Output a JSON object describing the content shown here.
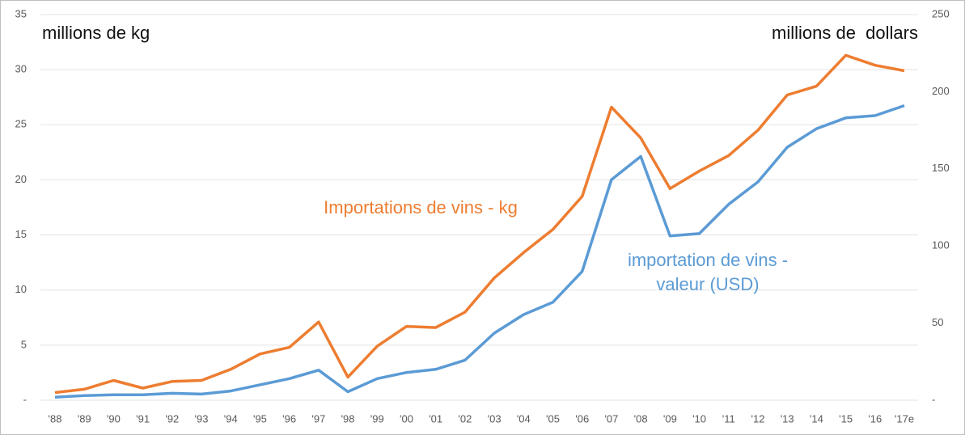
{
  "chart_data": {
    "type": "line",
    "annotations": [
      "millions de kg",
      "millions de  dollars"
    ],
    "categories": [
      "'88",
      "'89",
      "'90",
      "'91",
      "'92",
      "'93",
      "'94",
      "'95",
      "'96",
      "'97",
      "'98",
      "'99",
      "'00",
      "'01",
      "'02",
      "'03",
      "'04",
      "'05",
      "'06",
      "'07",
      "'08",
      "'09",
      "'10",
      "'11",
      "'12",
      "'13",
      "'14",
      "'15",
      "'16",
      "'17e"
    ],
    "series": [
      {
        "name": "Importations de vins - kg",
        "color": "#ED7D31",
        "values": [
          0.7,
          1.0,
          1.8,
          1.1,
          1.7,
          1.8,
          2.8,
          4.2,
          4.8,
          7.1,
          2.1,
          4.9,
          6.7,
          6.6,
          8.0,
          11.1,
          13.4,
          15.5,
          18.5,
          26.6,
          23.8,
          19.2,
          20.8,
          22.2,
          24.5,
          27.7,
          28.5,
          31.3,
          30.4,
          29.9
        ]
      },
      {
        "name": "importation de vins - valeur (USD)",
        "color": "#5B9BD5",
        "axis": "y2",
        "values": [
          2,
          3,
          3.5,
          3.5,
          4.5,
          4,
          6,
          10,
          14,
          19.5,
          5.5,
          14,
          18,
          20,
          26,
          43.5,
          55.5,
          63.5,
          83.5,
          143,
          158,
          106.5,
          108,
          127,
          141.5,
          164,
          176,
          183,
          184.5,
          191
        ]
      }
    ],
    "ylim": [
      0,
      35
    ],
    "yticks": [
      {
        "value": 0,
        "label": "-"
      },
      5,
      10,
      15,
      20,
      25,
      30,
      35
    ],
    "y2lim": [
      0,
      250
    ],
    "y2ticks": [
      {
        "value": 0,
        "label": "-"
      },
      50,
      100,
      150,
      200,
      250
    ],
    "grid": true
  }
}
